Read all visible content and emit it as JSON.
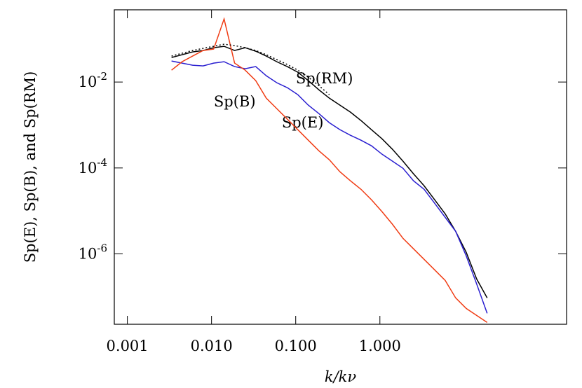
{
  "chart_data": {
    "type": "line",
    "log_x": true,
    "log_y": true,
    "x_label": "k/kν",
    "y_label": "Sp(E), Sp(B), and Sp(RM)",
    "xlim": [
      0.0007,
      165
    ],
    "ylim": [
      2.3e-08,
      0.48
    ],
    "xticks": [
      {
        "value": 0.001,
        "label": "0.001"
      },
      {
        "value": 0.01,
        "label": "0.010"
      },
      {
        "value": 0.1,
        "label": "0.100"
      },
      {
        "value": 1,
        "label": "1.000"
      }
    ],
    "yticks": [
      {
        "value": 0.01,
        "label": "10",
        "exponent": "-2"
      },
      {
        "value": 0.0001,
        "label": "10",
        "exponent": "-4"
      },
      {
        "value": 1e-06,
        "label": "10",
        "exponent": "-6"
      }
    ],
    "x": [
      0.00335,
      0.00447,
      0.00596,
      0.00794,
      0.0106,
      0.0141,
      0.0188,
      0.0251,
      0.0335,
      0.0447,
      0.0596,
      0.0794,
      0.106,
      0.141,
      0.188,
      0.251,
      0.335,
      0.447,
      0.596,
      0.794,
      1.06,
      1.41,
      1.88,
      2.51,
      3.35,
      4.47,
      5.96,
      7.94,
      10.6,
      14.1,
      18.8
    ],
    "series": [
      {
        "name": "Sp(RM)",
        "color": "#000000",
        "values": [
          0.0372,
          0.0433,
          0.0502,
          0.0542,
          0.063,
          0.0679,
          0.0542,
          0.063,
          0.0522,
          0.0402,
          0.0297,
          0.0229,
          0.0169,
          0.0108,
          0.00662,
          0.00421,
          0.0029,
          0.00199,
          0.00127,
          0.000778,
          0.000477,
          0.000272,
          0.000144,
          7.3e-05,
          3.85e-05,
          1.82e-05,
          8.57e-06,
          3.35e-06,
          1.09e-06,
          2.61e-07,
          9.46e-08
        ]
      },
      {
        "name": "Sp(E)",
        "color": "#2a1fd0",
        "values": [
          0.0308,
          0.0276,
          0.0246,
          0.0237,
          0.0276,
          0.0297,
          0.0229,
          0.0204,
          0.0229,
          0.014,
          0.00963,
          0.0074,
          0.00508,
          0.0029,
          0.00185,
          0.00113,
          0.000778,
          0.000576,
          0.000443,
          0.000328,
          0.000209,
          0.000144,
          9.84e-05,
          5.01e-05,
          3.19e-05,
          1.51e-05,
          7.11e-06,
          3.35e-06,
          9e-07,
          2e-07,
          4.14e-08
        ]
      },
      {
        "name": "Sp(B)",
        "color": "#f03c14",
        "values": [
          0.0189,
          0.0297,
          0.0402,
          0.0542,
          0.0584,
          0.294,
          0.0276,
          0.0189,
          0.0108,
          0.00421,
          0.0024,
          0.00137,
          0.000778,
          0.000443,
          0.000252,
          0.000155,
          8.17e-05,
          5.01e-05,
          3.19e-05,
          1.82e-05,
          9.6e-06,
          4.88e-06,
          2.3e-06,
          1.31e-06,
          7.46e-07,
          4.25e-07,
          2.42e-07,
          9.46e-08,
          5.38e-08,
          3.7e-08,
          2.54e-08
        ]
      },
      {
        "color": "#000000",
        "dash": true,
        "values": [
          0.0402,
          0.0467,
          0.0542,
          0.0607,
          0.0679,
          0.076,
          0.0705,
          0.063,
          0.0542,
          0.0433,
          0.0333,
          0.0256,
          0.0189,
          0.013,
          0.00828,
          0.00508,
          null,
          null,
          null,
          null,
          null,
          null,
          null,
          null,
          null,
          null,
          null,
          null,
          null,
          null,
          null
        ]
      }
    ]
  }
}
